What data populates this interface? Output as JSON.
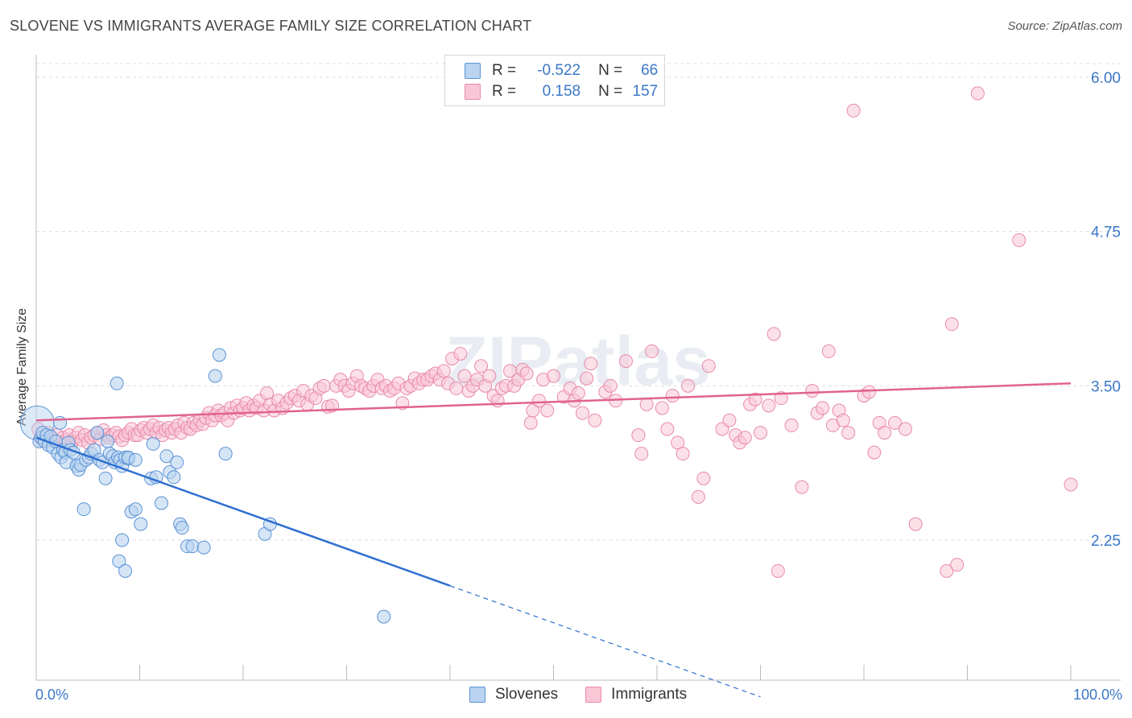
{
  "title": "SLOVENE VS IMMIGRANTS AVERAGE FAMILY SIZE CORRELATION CHART",
  "source": "Source: ZipAtlas.com",
  "watermark": "ZIPatlas",
  "legend": {
    "rows": [
      {
        "r_label": "R =",
        "r_value": "-0.522",
        "n_label": "N =",
        "n_value": "66"
      },
      {
        "r_label": "R =",
        "r_value": "0.158",
        "n_label": "N =",
        "n_value": "157"
      }
    ]
  },
  "colors": {
    "slovenes_fill": "#b9d3f0",
    "slovenes_stroke": "#5b93d6",
    "slovenes_line": "#2f6fd0",
    "immigrants_fill": "#f9c6d6",
    "immigrants_stroke": "#e88aab",
    "immigrants_line": "#e0638e",
    "tick_text": "#3a78c8",
    "grid": "#dddddd"
  },
  "chart_data": {
    "type": "scatter",
    "title": "SLOVENE VS IMMIGRANTS AVERAGE FAMILY SIZE CORRELATION CHART",
    "xlabel": "",
    "ylabel": "Average Family Size",
    "xlim": [
      0,
      100
    ],
    "ylim": [
      1.0,
      6.1
    ],
    "x_tick_labels": [
      "0.0%",
      "100.0%"
    ],
    "y_ticks": [
      6.0,
      4.75,
      3.5,
      2.25
    ],
    "y_tick_labels": [
      "6.00",
      "4.75",
      "3.50",
      "2.25"
    ],
    "legend_position": "top-center",
    "series": [
      {
        "name": "Slovenes",
        "R": -0.522,
        "N": 66,
        "trend": {
          "x0": 0,
          "y0": 3.08,
          "x1": 40,
          "y1": 1.88,
          "dashed_to_x": 70,
          "dashed_to_y": 0.98
        },
        "points": [
          [
            0.1,
            3.2
          ],
          [
            0.3,
            3.05
          ],
          [
            0.5,
            3.08
          ],
          [
            0.6,
            3.12
          ],
          [
            0.8,
            3.05
          ],
          [
            1.0,
            3.1
          ],
          [
            1.2,
            3.02
          ],
          [
            1.4,
            3.09
          ],
          [
            1.6,
            3.0
          ],
          [
            1.9,
            3.05
          ],
          [
            2.1,
            2.95
          ],
          [
            2.3,
            3.2
          ],
          [
            2.4,
            2.92
          ],
          [
            2.6,
            2.98
          ],
          [
            2.8,
            2.96
          ],
          [
            2.9,
            2.88
          ],
          [
            3.1,
            3.04
          ],
          [
            3.3,
            2.98
          ],
          [
            3.6,
            2.96
          ],
          [
            3.9,
            2.85
          ],
          [
            4.1,
            2.82
          ],
          [
            4.3,
            2.86
          ],
          [
            4.6,
            2.5
          ],
          [
            4.8,
            2.9
          ],
          [
            5.1,
            2.92
          ],
          [
            5.3,
            2.95
          ],
          [
            5.6,
            2.98
          ],
          [
            5.9,
            3.12
          ],
          [
            6.1,
            2.9
          ],
          [
            6.4,
            2.88
          ],
          [
            6.7,
            2.75
          ],
          [
            6.9,
            3.05
          ],
          [
            7.1,
            2.95
          ],
          [
            7.4,
            2.93
          ],
          [
            7.6,
            2.88
          ],
          [
            7.9,
            2.92
          ],
          [
            8.1,
            2.9
          ],
          [
            8.3,
            2.85
          ],
          [
            8.6,
            2.92
          ],
          [
            7.8,
            3.52
          ],
          [
            8.0,
            2.08
          ],
          [
            8.3,
            2.25
          ],
          [
            8.6,
            2.0
          ],
          [
            8.9,
            2.91
          ],
          [
            8.9,
            2.92
          ],
          [
            9.2,
            2.48
          ],
          [
            9.6,
            2.9
          ],
          [
            9.6,
            2.5
          ],
          [
            10.1,
            2.38
          ],
          [
            11.1,
            2.75
          ],
          [
            11.3,
            3.03
          ],
          [
            11.6,
            2.76
          ],
          [
            12.1,
            2.55
          ],
          [
            12.6,
            2.93
          ],
          [
            12.9,
            2.8
          ],
          [
            13.3,
            2.76
          ],
          [
            13.6,
            2.88
          ],
          [
            13.9,
            2.38
          ],
          [
            14.1,
            2.35
          ],
          [
            14.6,
            2.2
          ],
          [
            15.1,
            2.2
          ],
          [
            16.2,
            2.19
          ],
          [
            17.3,
            3.58
          ],
          [
            17.7,
            3.75
          ],
          [
            18.3,
            2.95
          ],
          [
            22.1,
            2.3
          ],
          [
            22.6,
            2.38
          ],
          [
            33.6,
            1.63
          ]
        ]
      },
      {
        "name": "Immigrants",
        "R": 0.158,
        "N": 157,
        "trend": {
          "x0": 0,
          "y0": 3.22,
          "x1": 100,
          "y1": 3.52
        },
        "points": [
          [
            0.2,
            3.15
          ],
          [
            0.4,
            3.08
          ],
          [
            0.6,
            3.1
          ],
          [
            0.9,
            3.05
          ],
          [
            1.1,
            3.12
          ],
          [
            1.4,
            3.08
          ],
          [
            1.7,
            3.06
          ],
          [
            2.0,
            3.1
          ],
          [
            2.3,
            3.04
          ],
          [
            2.6,
            3.08
          ],
          [
            2.9,
            3.06
          ],
          [
            3.2,
            3.1
          ],
          [
            3.5,
            3.05
          ],
          [
            3.8,
            3.08
          ],
          [
            4.1,
            3.12
          ],
          [
            4.4,
            3.06
          ],
          [
            4.7,
            3.1
          ],
          [
            5.0,
            3.04
          ],
          [
            5.3,
            3.08
          ],
          [
            5.6,
            3.1
          ],
          [
            5.9,
            3.12
          ],
          [
            6.2,
            3.07
          ],
          [
            6.5,
            3.14
          ],
          [
            6.8,
            3.1
          ],
          [
            7.1,
            3.08
          ],
          [
            7.4,
            3.1
          ],
          [
            7.7,
            3.12
          ],
          [
            8.0,
            3.09
          ],
          [
            8.3,
            3.06
          ],
          [
            8.6,
            3.1
          ],
          [
            8.9,
            3.12
          ],
          [
            9.2,
            3.15
          ],
          [
            9.5,
            3.1
          ],
          [
            9.8,
            3.1
          ],
          [
            10.1,
            3.14
          ],
          [
            10.4,
            3.16
          ],
          [
            10.7,
            3.12
          ],
          [
            11.0,
            3.15
          ],
          [
            11.3,
            3.18
          ],
          [
            11.6,
            3.12
          ],
          [
            11.9,
            3.16
          ],
          [
            12.2,
            3.1
          ],
          [
            12.5,
            3.14
          ],
          [
            12.8,
            3.16
          ],
          [
            13.1,
            3.12
          ],
          [
            13.4,
            3.15
          ],
          [
            13.7,
            3.18
          ],
          [
            14.0,
            3.12
          ],
          [
            14.3,
            3.2
          ],
          [
            14.6,
            3.16
          ],
          [
            14.9,
            3.15
          ],
          [
            15.2,
            3.2
          ],
          [
            15.5,
            3.18
          ],
          [
            15.8,
            3.22
          ],
          [
            16.1,
            3.19
          ],
          [
            16.4,
            3.24
          ],
          [
            16.7,
            3.28
          ],
          [
            17.0,
            3.22
          ],
          [
            17.3,
            3.26
          ],
          [
            17.6,
            3.3
          ],
          [
            17.9,
            3.26
          ],
          [
            18.2,
            3.28
          ],
          [
            18.5,
            3.22
          ],
          [
            18.8,
            3.32
          ],
          [
            19.1,
            3.28
          ],
          [
            19.4,
            3.34
          ],
          [
            19.7,
            3.3
          ],
          [
            20.0,
            3.32
          ],
          [
            20.3,
            3.36
          ],
          [
            20.6,
            3.3
          ],
          [
            21.0,
            3.34
          ],
          [
            21.3,
            3.32
          ],
          [
            21.6,
            3.38
          ],
          [
            22.0,
            3.3
          ],
          [
            22.3,
            3.44
          ],
          [
            22.6,
            3.35
          ],
          [
            23.0,
            3.3
          ],
          [
            23.4,
            3.38
          ],
          [
            23.8,
            3.32
          ],
          [
            24.2,
            3.36
          ],
          [
            24.6,
            3.4
          ],
          [
            25.0,
            3.42
          ],
          [
            25.4,
            3.38
          ],
          [
            25.8,
            3.46
          ],
          [
            26.2,
            3.35
          ],
          [
            26.6,
            3.42
          ],
          [
            27.0,
            3.4
          ],
          [
            27.4,
            3.48
          ],
          [
            27.8,
            3.5
          ],
          [
            28.2,
            3.33
          ],
          [
            28.6,
            3.34
          ],
          [
            29.0,
            3.5
          ],
          [
            29.4,
            3.55
          ],
          [
            29.8,
            3.5
          ],
          [
            30.2,
            3.46
          ],
          [
            30.6,
            3.52
          ],
          [
            31.0,
            3.58
          ],
          [
            31.4,
            3.5
          ],
          [
            31.8,
            3.48
          ],
          [
            32.2,
            3.46
          ],
          [
            32.6,
            3.5
          ],
          [
            33.0,
            3.55
          ],
          [
            33.4,
            3.48
          ],
          [
            33.8,
            3.5
          ],
          [
            34.2,
            3.46
          ],
          [
            34.6,
            3.48
          ],
          [
            35.0,
            3.52
          ],
          [
            35.4,
            3.36
          ],
          [
            35.8,
            3.48
          ],
          [
            36.2,
            3.5
          ],
          [
            36.6,
            3.56
          ],
          [
            37.0,
            3.52
          ],
          [
            37.4,
            3.55
          ],
          [
            37.8,
            3.55
          ],
          [
            38.2,
            3.58
          ],
          [
            38.6,
            3.6
          ],
          [
            39.0,
            3.55
          ],
          [
            39.4,
            3.62
          ],
          [
            39.8,
            3.52
          ],
          [
            40.2,
            3.72
          ],
          [
            40.6,
            3.48
          ],
          [
            41.0,
            3.76
          ],
          [
            41.4,
            3.58
          ],
          [
            41.8,
            3.46
          ],
          [
            42.2,
            3.5
          ],
          [
            42.6,
            3.55
          ],
          [
            43.0,
            3.66
          ],
          [
            43.4,
            3.5
          ],
          [
            43.8,
            3.58
          ],
          [
            44.2,
            3.42
          ],
          [
            44.6,
            3.38
          ],
          [
            45.0,
            3.48
          ],
          [
            45.4,
            3.5
          ],
          [
            45.8,
            3.62
          ],
          [
            46.2,
            3.5
          ],
          [
            46.6,
            3.55
          ],
          [
            47.0,
            3.63
          ],
          [
            47.4,
            3.6
          ],
          [
            47.8,
            3.2
          ],
          [
            48.0,
            3.3
          ],
          [
            48.6,
            3.38
          ],
          [
            49.0,
            3.55
          ],
          [
            49.4,
            3.3
          ],
          [
            50.0,
            3.58
          ],
          [
            51.0,
            3.41
          ],
          [
            51.6,
            3.48
          ],
          [
            52.0,
            3.38
          ],
          [
            52.4,
            3.44
          ],
          [
            52.8,
            3.28
          ],
          [
            53.2,
            3.56
          ],
          [
            53.6,
            3.68
          ],
          [
            54.0,
            3.22
          ],
          [
            55.0,
            3.45
          ],
          [
            55.5,
            3.5
          ],
          [
            56.0,
            3.38
          ],
          [
            57.0,
            3.7
          ],
          [
            58.2,
            3.1
          ],
          [
            58.5,
            2.95
          ],
          [
            59.0,
            3.35
          ],
          [
            59.5,
            3.78
          ],
          [
            60.5,
            3.32
          ],
          [
            61.0,
            3.15
          ],
          [
            61.5,
            3.42
          ],
          [
            62.0,
            3.04
          ],
          [
            62.5,
            2.95
          ],
          [
            63.0,
            3.5
          ],
          [
            64.0,
            2.6
          ],
          [
            64.5,
            2.75
          ],
          [
            65.0,
            3.66
          ],
          [
            66.3,
            3.15
          ],
          [
            67.0,
            3.22
          ],
          [
            67.6,
            3.1
          ],
          [
            68.0,
            3.04
          ],
          [
            68.5,
            3.08
          ],
          [
            69.0,
            3.35
          ],
          [
            69.5,
            3.39
          ],
          [
            70.0,
            3.12
          ],
          [
            70.8,
            3.34
          ],
          [
            71.3,
            3.92
          ],
          [
            71.7,
            2.0
          ],
          [
            72.0,
            3.4
          ],
          [
            73.0,
            3.18
          ],
          [
            74.0,
            2.68
          ],
          [
            75.0,
            3.46
          ],
          [
            75.5,
            3.28
          ],
          [
            76.0,
            3.32
          ],
          [
            76.6,
            3.78
          ],
          [
            77.0,
            3.18
          ],
          [
            77.6,
            3.3
          ],
          [
            78.0,
            3.22
          ],
          [
            78.5,
            3.12
          ],
          [
            79.0,
            5.73
          ],
          [
            80.0,
            3.42
          ],
          [
            80.5,
            3.45
          ],
          [
            81.0,
            2.96
          ],
          [
            81.5,
            3.2
          ],
          [
            82.0,
            3.12
          ],
          [
            83.0,
            3.2
          ],
          [
            84.0,
            3.15
          ],
          [
            85.0,
            2.38
          ],
          [
            88.0,
            2.0
          ],
          [
            88.5,
            4.0
          ],
          [
            89.0,
            2.05
          ],
          [
            91.0,
            5.87
          ],
          [
            95.0,
            4.68
          ],
          [
            100.0,
            2.7
          ]
        ]
      }
    ]
  }
}
